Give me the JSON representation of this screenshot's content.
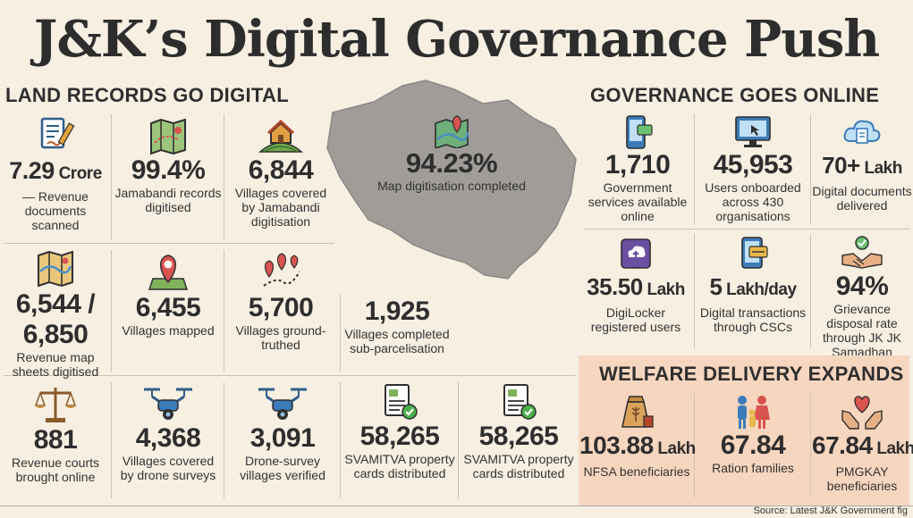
{
  "title": "J&K’s Digital Governance Push",
  "land": {
    "heading": "LAND RECORDS GO DIGITAL",
    "r1": [
      {
        "num": "7.29",
        "unit": " Crore",
        "cap": "— Revenue documents scanned",
        "icon": "document-pen-icon"
      },
      {
        "num": "99.4%",
        "unit": "",
        "cap": "Jamabandi records digitised",
        "icon": "folded-map-icon"
      },
      {
        "num": "6,844",
        "unit": "",
        "cap": "Villages covered by Jamabandi digitisation",
        "icon": "village-house-icon"
      }
    ],
    "r2": [
      {
        "num": "6,544 /",
        "num2": "6,850",
        "cap": "Revenue map sheets digitised",
        "icon": "map-sheet-icon"
      },
      {
        "num": "6,455",
        "cap": "Villages mapped",
        "icon": "map-pin-icon"
      },
      {
        "num": "5,700",
        "cap": "Villages ground-truthed",
        "icon": "route-pins-icon"
      },
      {
        "num": "1,925",
        "cap": "Villages completed sub-parcelisation"
      }
    ],
    "r3": [
      {
        "num": "881",
        "cap": "Revenue courts brought online",
        "icon": "scales-icon"
      },
      {
        "num": "4,368",
        "cap": "Villages covered by drone surveys",
        "icon": "drone-icon"
      },
      {
        "num": "3,091",
        "cap": "Drone-survey villages verified",
        "icon": "drone-icon"
      },
      {
        "num": "58,265",
        "cap": "SVAMITVA property cards distributed",
        "icon": "property-card-icon"
      },
      {
        "num": "58,265",
        "cap": "SVAMITVA property cards distributed",
        "icon": "property-card-icon"
      }
    ]
  },
  "map": {
    "num": "94.23%",
    "cap": "Map digitisation completed"
  },
  "gov": {
    "heading": "GOVERNANCE GOES ONLINE",
    "r1": [
      {
        "num": "1,710",
        "unit": "",
        "cap": "Government services available online",
        "icon": "phone-icon"
      },
      {
        "num": "45,953",
        "unit": "",
        "cap": "Users onboarded across 430 organisations",
        "icon": "monitor-icon"
      },
      {
        "num": "70+",
        "unit": " Lakh",
        "cap": "Digital documents delivered",
        "icon": "cloud-document-icon"
      }
    ],
    "r2": [
      {
        "num": "35.50",
        "unit": " Lakh",
        "cap": "DigiLocker registered users",
        "icon": "digilocker-icon"
      },
      {
        "num": "5",
        "unit": " Lakh/day",
        "cap": "Digital transactions through CSCs",
        "icon": "mobile-payment-icon"
      },
      {
        "num": "94%",
        "unit": "",
        "cap": "Grievance disposal rate through JK JK Samadhan",
        "icon": "handshake-icon"
      }
    ]
  },
  "welfare": {
    "heading": "WELFARE DELIVERY EXPANDS",
    "items": [
      {
        "num": "103.88",
        "unit": " Lakh",
        "cap": "NFSA beneficiaries",
        "icon": "grain-sack-icon"
      },
      {
        "num": "67.84",
        "unit": "",
        "cap": "Ration families",
        "icon": "family-icon"
      },
      {
        "num": "67.84",
        "unit": " Lakh",
        "cap": "PMGKAY beneficiaries",
        "icon": "hands-heart-icon"
      }
    ]
  },
  "source": "Source: Latest J&K Government fig"
}
